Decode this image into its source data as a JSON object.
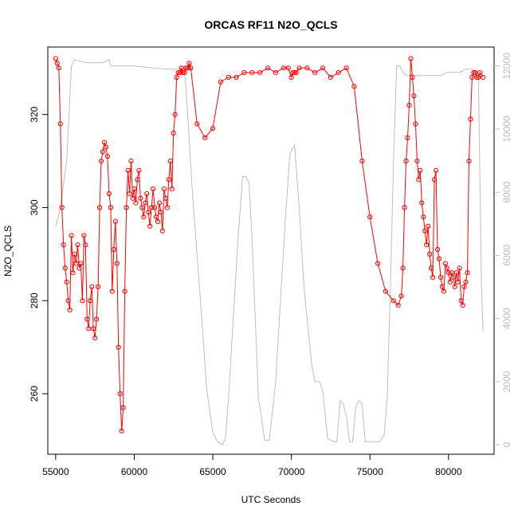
{
  "chart_data": {
    "type": "line",
    "title": "ORCAS RF11 N2O_QCLS",
    "xlabel": "UTC Seconds",
    "ylabel": "N2O_QCLS",
    "xlim": [
      54500,
      82900
    ],
    "ylim": [
      247,
      334.5
    ],
    "y2lim": [
      -300,
      12600
    ],
    "x_ticks": [
      55000,
      60000,
      65000,
      70000,
      75000,
      80000
    ],
    "y_ticks": [
      260,
      280,
      300,
      320
    ],
    "y2_ticks": [
      0,
      2000,
      4000,
      6000,
      8000,
      10000,
      12000
    ],
    "grid": false,
    "legend": "none",
    "colors": {
      "primary": "#ff0000",
      "secondary": "#bebebe"
    },
    "series": [
      {
        "axis": "left",
        "style": "line+circles",
        "x": [
          55000,
          55100,
          55200,
          55300,
          55400,
          55500,
          55600,
          55700,
          55800,
          55900,
          56000,
          56100,
          56200,
          56300,
          56400,
          56500,
          56600,
          56700,
          56800,
          56900,
          57000,
          57100,
          57200,
          57300,
          57400,
          57500,
          57600,
          57700,
          57800,
          57900,
          58000,
          58100,
          58200,
          58300,
          58400,
          58500,
          58600,
          58700,
          58800,
          58900,
          59000,
          59100,
          59200,
          59300,
          59400,
          59500,
          59600,
          59700,
          59800,
          59900,
          60000,
          60100,
          60200,
          60300,
          60400,
          60500,
          60600,
          60700,
          60800,
          60900,
          61000,
          61100,
          61200,
          61300,
          61400,
          61500,
          61600,
          61700,
          61800,
          61900,
          62000,
          62100,
          62200,
          62300,
          62400,
          62500,
          62600,
          62700,
          62800,
          62900,
          63000,
          63100,
          63200,
          63300,
          63400,
          63500,
          63600,
          64000,
          64500,
          65000,
          65500,
          66000,
          66500,
          67000,
          67500,
          68000,
          68500,
          69000,
          69500,
          69800,
          70000,
          70100,
          70200,
          70300,
          70500,
          71000,
          71500,
          72000,
          72500,
          73000,
          73500,
          74000,
          74500,
          75000,
          75500,
          76000,
          76500,
          76800,
          77000,
          77100,
          77200,
          77300,
          77400,
          77500,
          77600,
          77700,
          77800,
          77900,
          78000,
          78100,
          78200,
          78300,
          78400,
          78500,
          78600,
          78700,
          78800,
          78900,
          79000,
          79100,
          79200,
          79300,
          79400,
          79500,
          79600,
          79700,
          79800,
          79900,
          80000,
          80100,
          80200,
          80300,
          80400,
          80500,
          80600,
          80700,
          80800,
          80900,
          81000,
          81100,
          81200,
          81300,
          81400,
          81500,
          81600,
          81700,
          81800,
          81900,
          82000,
          82200
        ],
        "y": [
          332,
          331,
          330,
          318,
          300,
          292,
          287,
          284,
          280,
          278,
          294,
          286,
          290,
          288,
          292,
          287,
          288,
          280,
          294,
          292,
          276,
          274,
          280,
          283,
          274,
          272,
          276,
          283,
          300,
          310,
          312,
          314,
          313,
          311,
          303,
          300,
          282,
          291,
          297,
          288,
          270,
          260,
          252,
          257,
          282,
          300,
          308,
          303,
          310,
          302,
          304,
          301,
          306,
          308,
          302,
          300,
          298,
          301,
          303,
          299,
          296,
          300,
          304,
          300,
          298,
          297,
          301,
          299,
          295,
          304,
          302,
          300,
          306,
          310,
          304,
          316,
          320,
          328,
          329,
          329,
          330,
          329,
          329,
          330,
          330,
          331,
          330,
          318,
          315,
          317,
          327,
          328,
          328,
          329,
          329,
          329,
          330,
          329,
          330,
          330,
          328,
          329,
          329,
          329,
          330,
          330,
          329,
          330,
          328,
          329,
          330,
          326,
          310,
          298,
          288,
          282,
          280,
          279,
          281,
          287,
          300,
          310,
          315,
          322,
          332,
          328,
          324,
          318,
          310,
          306,
          308,
          301,
          298,
          295,
          292,
          296,
          290,
          287,
          285,
          306,
          308,
          291,
          289,
          285,
          283,
          282,
          288,
          287,
          286,
          284,
          286,
          285,
          283,
          286,
          284,
          287,
          280,
          279,
          283,
          284,
          286,
          310,
          319,
          328,
          329,
          329,
          328,
          328,
          329,
          328
        ]
      },
      {
        "axis": "right",
        "style": "line",
        "x": [
          55000,
          55300,
          55700,
          56000,
          56200,
          57000,
          58000,
          58400,
          58500,
          60000,
          62000,
          63000,
          63200,
          63400,
          63700,
          64000,
          64300,
          64600,
          65000,
          65300,
          65600,
          65800,
          66000,
          66300,
          66600,
          66900,
          67100,
          67300,
          67500,
          67700,
          67900,
          68300,
          68600,
          69000,
          69300,
          69600,
          69900,
          70200,
          70500,
          70800,
          71100,
          71300,
          71500,
          71800,
          72000,
          72300,
          72700,
          72900,
          73100,
          73300,
          73500,
          73700,
          73900,
          74100,
          74300,
          74500,
          74700,
          74900,
          75100,
          75300,
          75600,
          75900,
          76100,
          76300,
          76500,
          76700,
          76900,
          77100,
          77300,
          77500,
          77700,
          77900,
          78100,
          78300,
          78500,
          78700,
          78900,
          79100,
          79300,
          79500,
          79700,
          79900,
          80100,
          80300,
          80500,
          80700,
          80900,
          81100,
          81300,
          81500,
          81700,
          81900,
          82100,
          82200
        ],
        "y": [
          6900,
          7500,
          9000,
          12000,
          12200,
          12100,
          12100,
          12200,
          12000,
          12000,
          11900,
          11900,
          11900,
          10500,
          8000,
          6000,
          4000,
          1800,
          400,
          100,
          0,
          200,
          1500,
          4000,
          6500,
          8500,
          8500,
          8300,
          6500,
          4000,
          1500,
          150,
          150,
          2000,
          4500,
          7000,
          9200,
          9500,
          7500,
          5000,
          3500,
          2500,
          2000,
          2000,
          1700,
          200,
          100,
          100,
          1400,
          1300,
          900,
          100,
          100,
          1200,
          1400,
          1300,
          100,
          100,
          100,
          100,
          100,
          300,
          1500,
          5000,
          9000,
          12000,
          12000,
          11800,
          11700,
          11700,
          11700,
          11700,
          11700,
          11700,
          11700,
          11700,
          11700,
          11700,
          11700,
          11700,
          11750,
          11800,
          11800,
          11800,
          11800,
          11800,
          11850,
          11900,
          11900,
          11900,
          11800,
          11700,
          5000,
          3600
        ]
      }
    ]
  }
}
